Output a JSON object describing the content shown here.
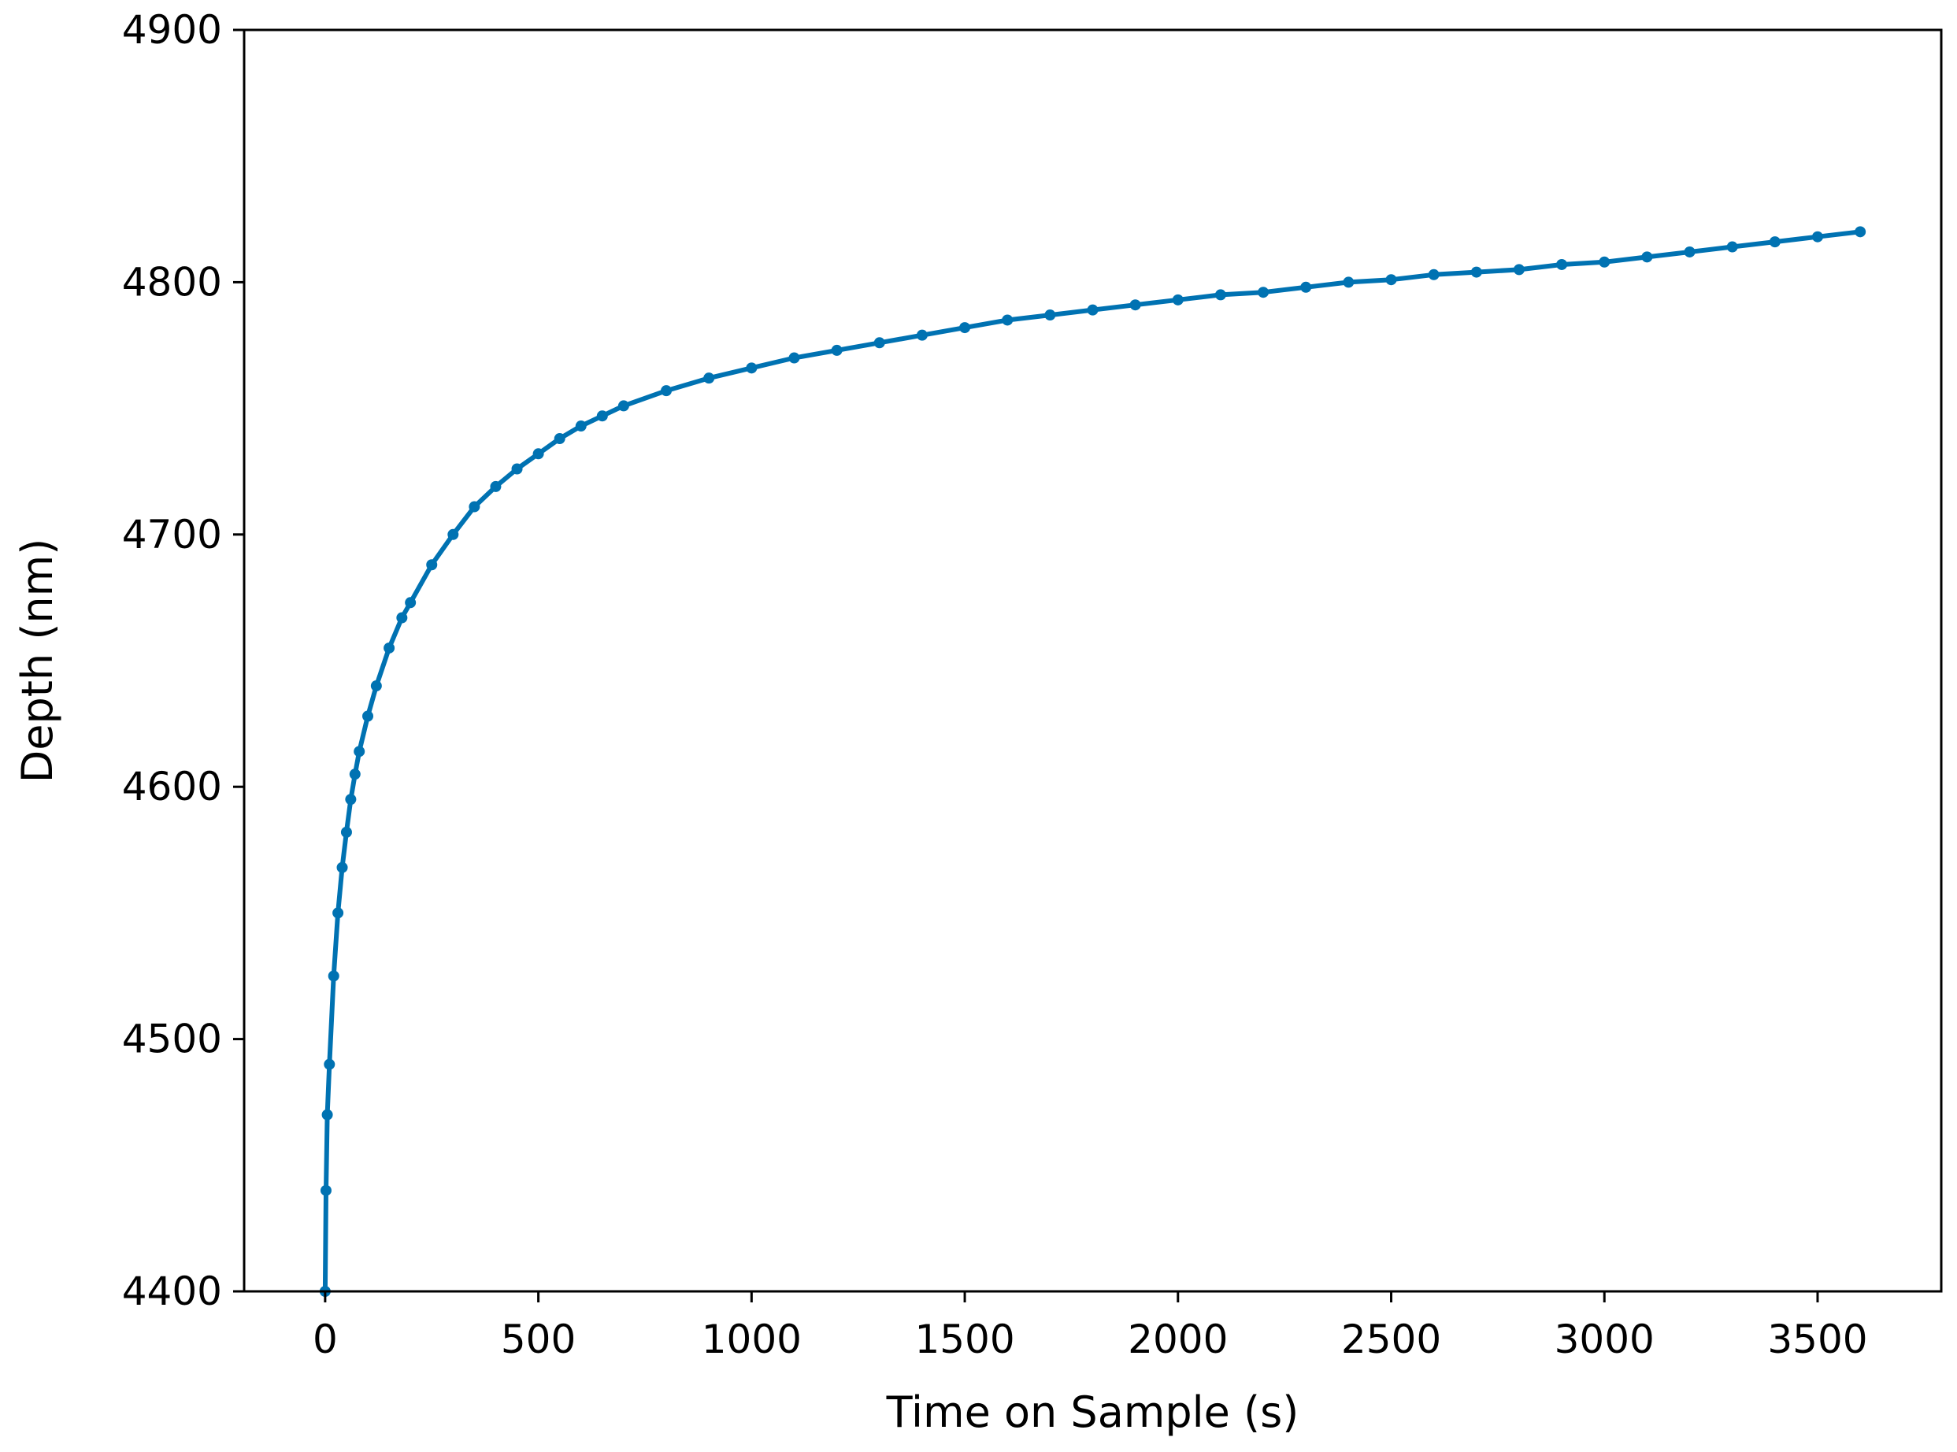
{
  "chart_data": {
    "type": "scatter",
    "title": "",
    "xlabel": "Time on Sample (s)",
    "ylabel": "Depth (nm)",
    "xlim": [
      -190,
      3790
    ],
    "ylim": [
      4400,
      4900
    ],
    "xticks": [
      0,
      500,
      1000,
      1500,
      2000,
      2500,
      3000,
      3500
    ],
    "yticks": [
      4400,
      4500,
      4600,
      4700,
      4800,
      4900
    ],
    "grid": false,
    "legend": "none",
    "series": [
      {
        "color": "#0072b2",
        "marker": "dot",
        "x": [
          0,
          2,
          5,
          10,
          20,
          30,
          40,
          50,
          60,
          70,
          80,
          100,
          120,
          150,
          180,
          200,
          250,
          300,
          350,
          400,
          450,
          500,
          550,
          600,
          650,
          700,
          800,
          900,
          1000,
          1100,
          1200,
          1300,
          1400,
          1500,
          1600,
          1700,
          1800,
          1900,
          2000,
          2100,
          2200,
          2300,
          2400,
          2500,
          2600,
          2700,
          2800,
          2900,
          3000,
          3100,
          3200,
          3300,
          3400,
          3500,
          3600
        ],
        "y": [
          4400,
          4440,
          4470,
          4490,
          4525,
          4550,
          4568,
          4582,
          4595,
          4605,
          4614,
          4628,
          4640,
          4655,
          4667,
          4673,
          4688,
          4700,
          4711,
          4719,
          4726,
          4732,
          4738,
          4743,
          4747,
          4751,
          4757,
          4762,
          4766,
          4770,
          4773,
          4776,
          4779,
          4782,
          4785,
          4787,
          4789,
          4791,
          4793,
          4795,
          4796,
          4798,
          4800,
          4801,
          4803,
          4804,
          4805,
          4807,
          4808,
          4810,
          4812,
          4814,
          4816,
          4818,
          4820
        ]
      }
    ]
  }
}
